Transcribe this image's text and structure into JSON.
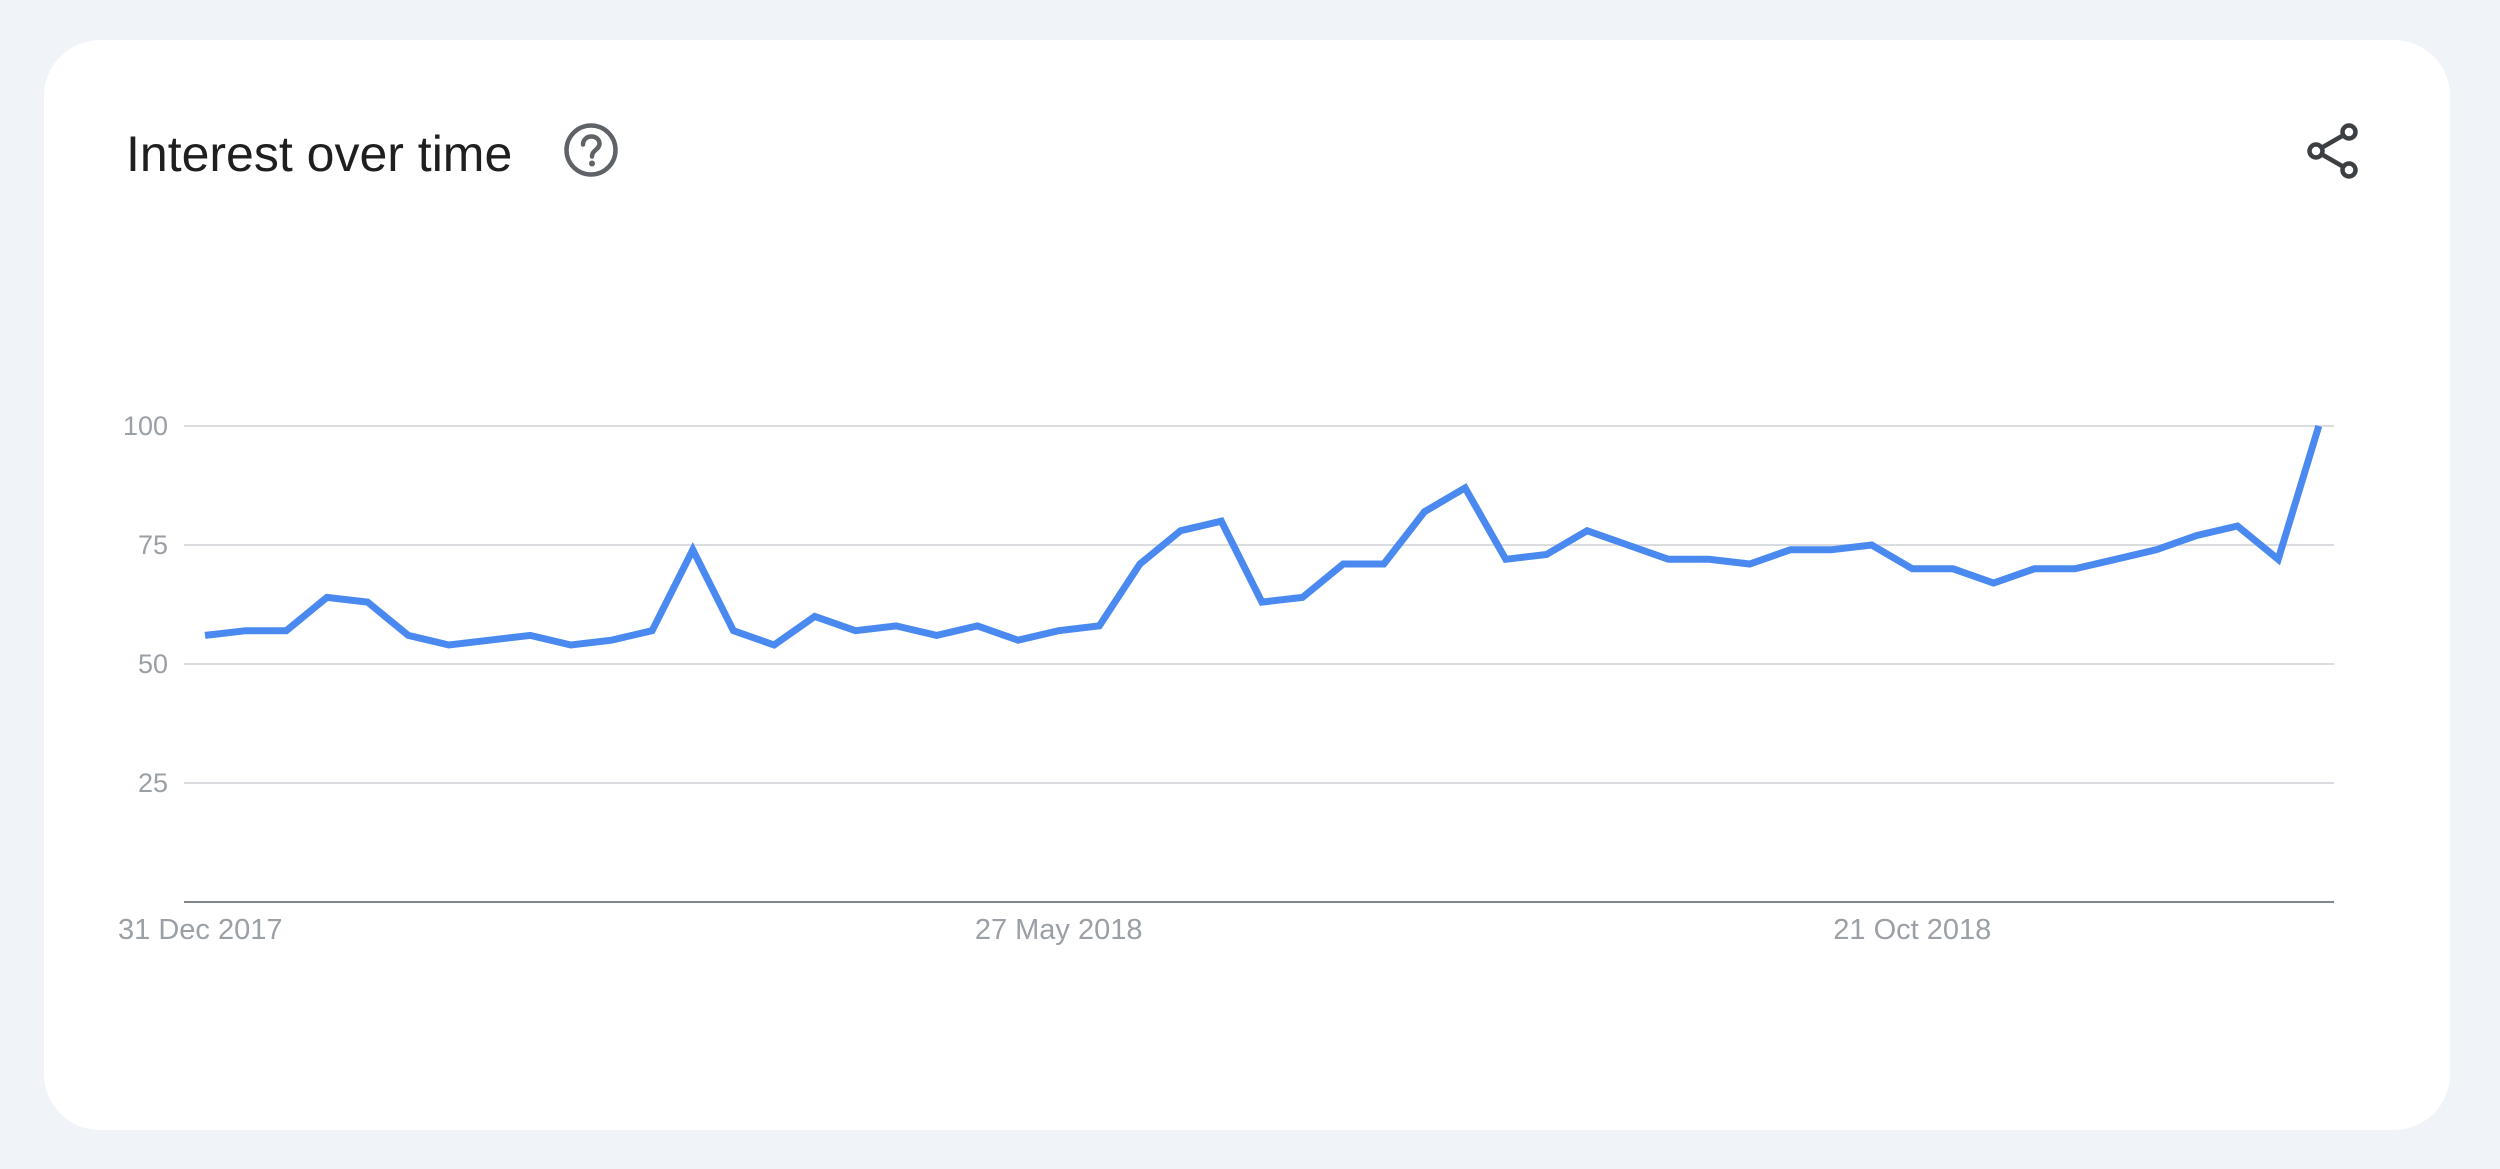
{
  "card": {
    "title": "Interest over time",
    "help_icon": "help-circle-icon",
    "share_icon": "share-icon"
  },
  "colors": {
    "line": "#4a8af0",
    "grid": "#dadce0",
    "axis": "#80868b",
    "tick_text": "#9aa0a6",
    "title_text": "#1f1f1f",
    "icon": "#5f6368",
    "background": "#f0f4f9",
    "card": "#ffffff"
  },
  "chart_data": {
    "type": "line",
    "title": "",
    "xlabel": "",
    "ylabel": "",
    "x_start": "31 Dec 2017",
    "x_end": "30 Dec 2018",
    "x_interval": "weekly",
    "ylim": [
      0,
      100
    ],
    "yticks": [
      25,
      50,
      75,
      100
    ],
    "xtick_labels": [
      "31 Dec 2017",
      "27 May 2018",
      "21 Oct 2018"
    ],
    "grid": true,
    "legend": "none",
    "series": [
      {
        "values": [
          56,
          57,
          57,
          64,
          63,
          56,
          54,
          55,
          56,
          54,
          55,
          57,
          74,
          57,
          54,
          60,
          57,
          58,
          56,
          58,
          55,
          57,
          58,
          71,
          78,
          80,
          63,
          64,
          71,
          71,
          82,
          87,
          72,
          73,
          78,
          75,
          72,
          72,
          71,
          74,
          74,
          75,
          70,
          70,
          67,
          70,
          70,
          72,
          74,
          77,
          79,
          72,
          100
        ]
      }
    ]
  }
}
